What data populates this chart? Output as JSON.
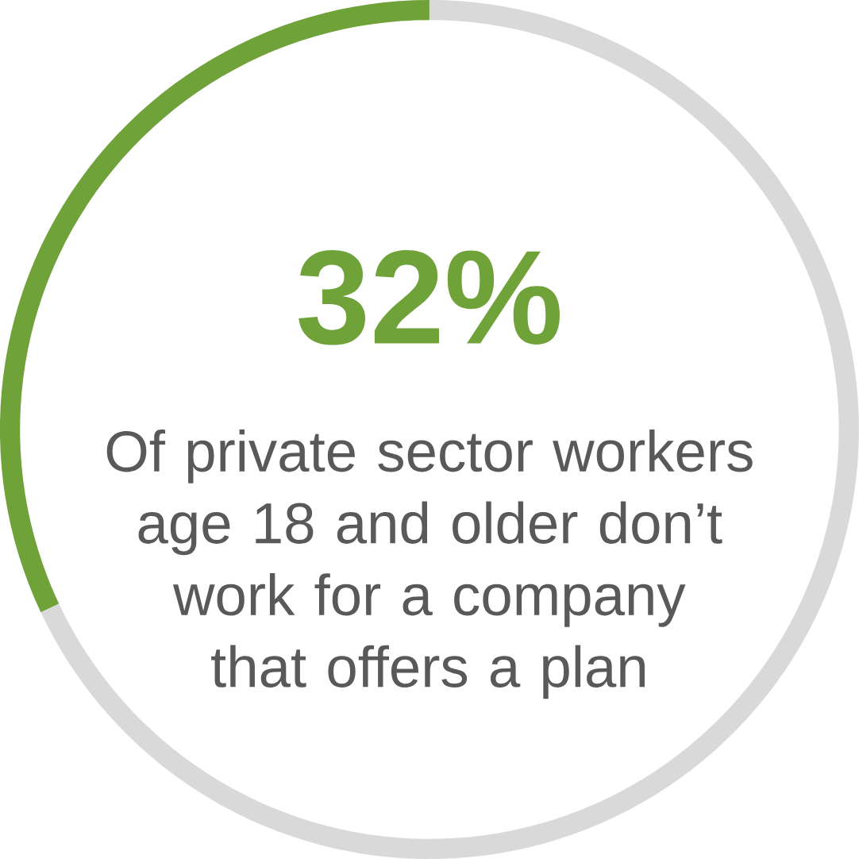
{
  "chart_data": {
    "type": "donut",
    "categories": [
      null,
      null
    ],
    "values": [
      32,
      68
    ],
    "colors": [
      "#70a23a",
      "#d9d9d9"
    ],
    "value_labels": [
      "32%",
      null
    ],
    "annotations": [
      "Of private sector workers age 18 and older don’t work for a company that offers a plan"
    ]
  }
}
